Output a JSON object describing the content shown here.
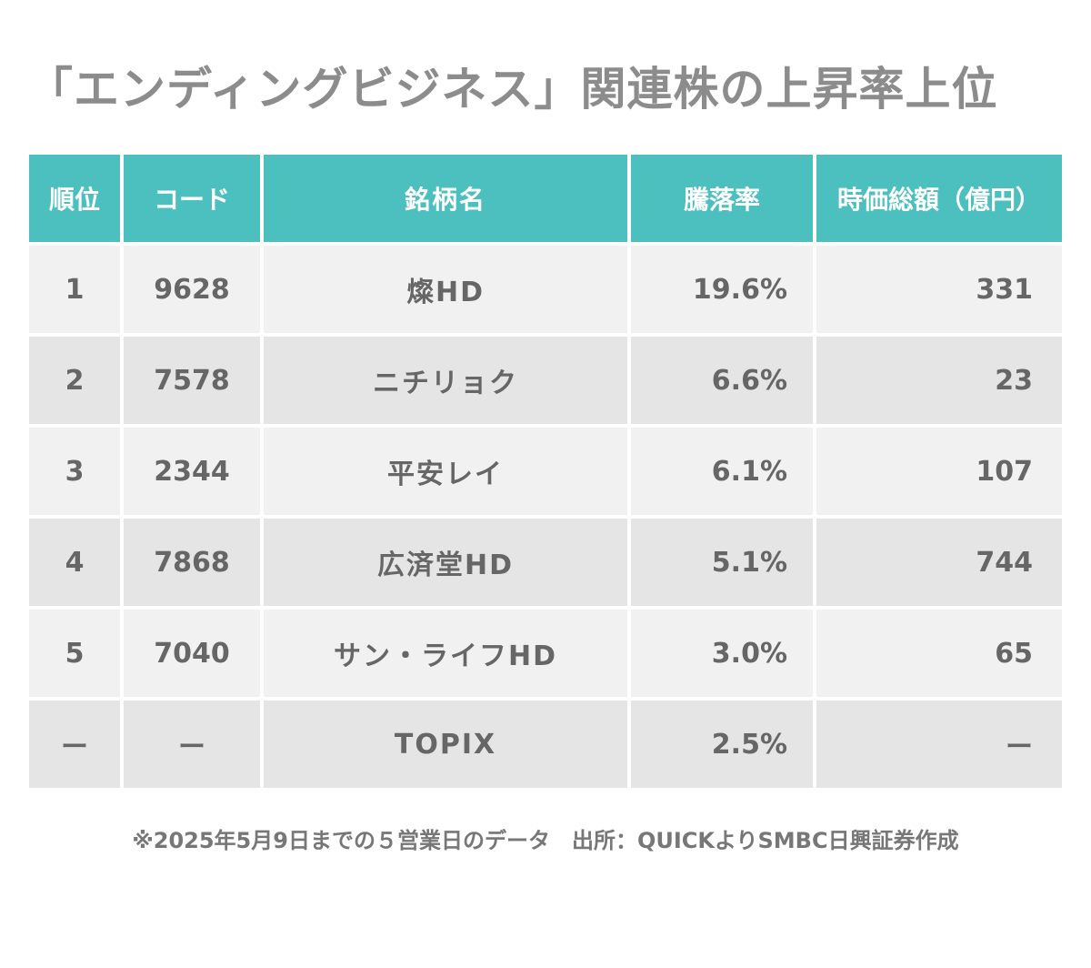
{
  "title": "「エンディングビジネス」関連株の上昇率上位",
  "chart_data": {
    "type": "table",
    "title": "「エンディングビジネス」関連株の上昇率上位",
    "columns": [
      "順位",
      "コード",
      "銘柄名",
      "騰落率",
      "時価総額（億円）"
    ],
    "rows": [
      [
        "1",
        "9628",
        "燦HD",
        "19.6%",
        "331"
      ],
      [
        "2",
        "7578",
        "ニチリョク",
        "6.6%",
        "23"
      ],
      [
        "3",
        "2344",
        "平安レイ",
        "6.1%",
        "107"
      ],
      [
        "4",
        "7868",
        "広済堂HD",
        "5.1%",
        "744"
      ],
      [
        "5",
        "7040",
        "サン・ライフHD",
        "3.0%",
        "65"
      ],
      [
        "ー",
        "ー",
        "TOPIX",
        "2.5%",
        "ー"
      ]
    ]
  },
  "footnote": "※2025年5月9日までの５営業日のデータ　出所：QUICKよりSMBC日興証券作成",
  "colors": {
    "header": "#4cbfbf",
    "row_light": "#f1f1f1",
    "row_dark": "#e5e5e5",
    "title": "#8c8c8c"
  }
}
